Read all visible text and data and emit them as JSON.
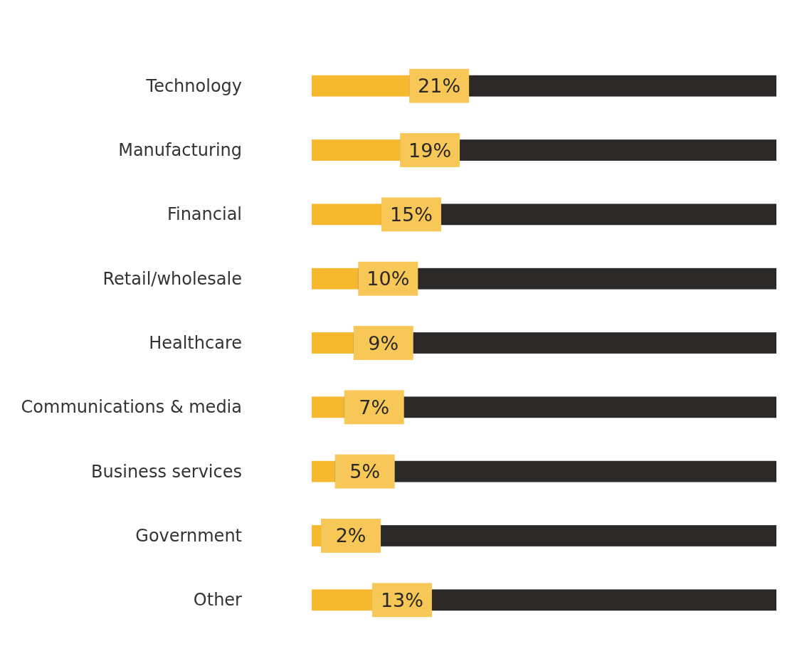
{
  "chart_data": {
    "type": "bar",
    "orientation": "horizontal",
    "stacked": true,
    "categories": [
      "Technology",
      "Manufacturing",
      "Financial",
      "Retail/wholesale",
      "Healthcare",
      "Communications & media",
      "Business services",
      "Government",
      "Other"
    ],
    "series": [
      {
        "color": "#f5b82e",
        "values": [
          21,
          19,
          15,
          10,
          9,
          7,
          5,
          2,
          13
        ],
        "value_labels": [
          "21%",
          "19%",
          "15%",
          "10%",
          "9%",
          "7%",
          "5%",
          "2%",
          "13%"
        ]
      },
      {
        "color": "#2b2828",
        "values": [
          79,
          81,
          85,
          90,
          91,
          93,
          95,
          98,
          87
        ]
      }
    ],
    "xlim": [
      0,
      100
    ],
    "tick_labels": "y"
  }
}
